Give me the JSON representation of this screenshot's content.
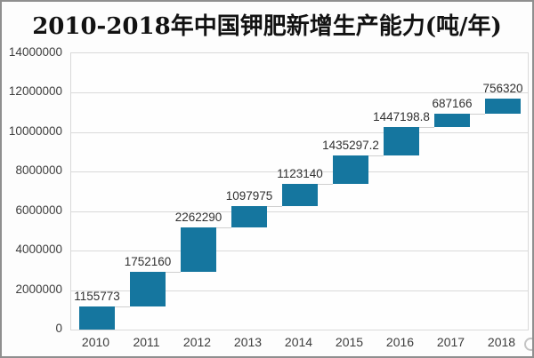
{
  "chart_data": {
    "type": "bar",
    "subtype": "waterfall",
    "title": "2010-2018年中国钾肥新增生产能力(吨/年)",
    "categories": [
      "2010",
      "2011",
      "2012",
      "2013",
      "2014",
      "2015",
      "2016",
      "2017",
      "2018"
    ],
    "values": [
      1155773,
      1752160,
      2262290,
      1097975,
      1123140,
      1435297.2,
      1447198.8,
      687166,
      756320
    ],
    "value_labels": [
      "1155773",
      "1752160",
      "2262290",
      "1097975",
      "1123140",
      "1435297.2",
      "1447198.8",
      "687166",
      "756320"
    ],
    "cumulative_totals": [
      1155773,
      2907933,
      5170223,
      6268198,
      7391338,
      8826635.2,
      10273834,
      10961000,
      11717320
    ],
    "xlabel": "",
    "ylabel": "",
    "ylim": [
      0,
      14000000
    ],
    "ytick_interval": 2000000,
    "ytick_labels": [
      "0",
      "2000000",
      "4000000",
      "6000000",
      "8000000",
      "10000000",
      "12000000",
      "14000000"
    ],
    "grid": "horizontal",
    "legend": "none",
    "bar_color": "#15769f",
    "gridline_color": "#d9d9d9",
    "connector_color": "#cfcfcf",
    "label_color": "#303030",
    "axis_text_color": "#3d3d3d"
  }
}
